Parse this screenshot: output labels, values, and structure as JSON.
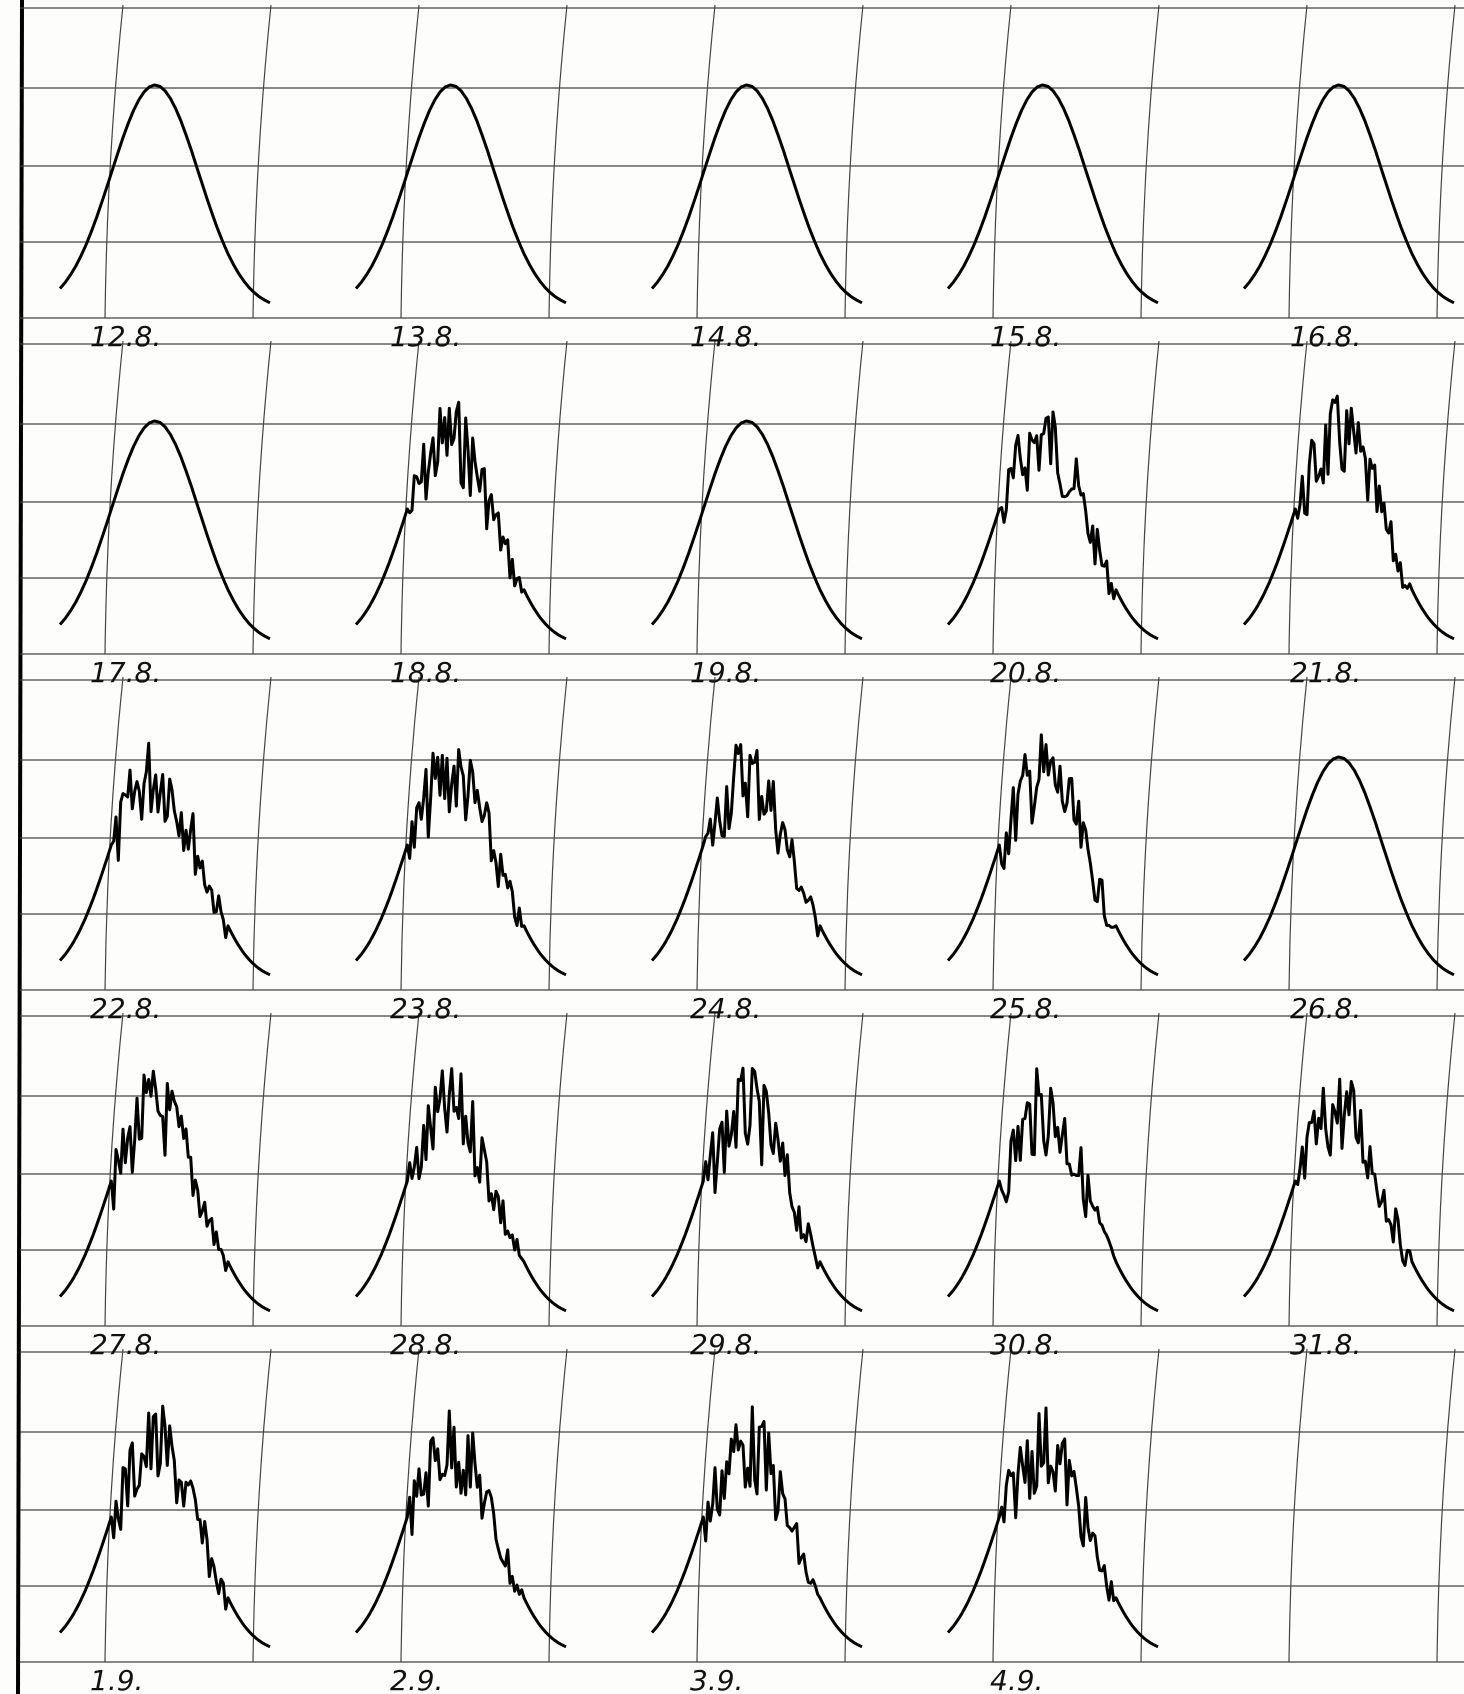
{
  "labels": [
    "12.8.",
    "13.8.",
    "14.8.",
    "15.8.",
    "16.8.",
    "17.8.",
    "18.8.",
    "19.8.",
    "20.8.",
    "21.8.",
    "22.8.",
    "23.8.",
    "24.8.",
    "25.8.",
    "26.8.",
    "27.8.",
    "28.8.",
    "29.8.",
    "30.8.",
    "31.8.",
    "1.9.",
    "2.9.",
    "3.9.",
    "4.9."
  ]
}
